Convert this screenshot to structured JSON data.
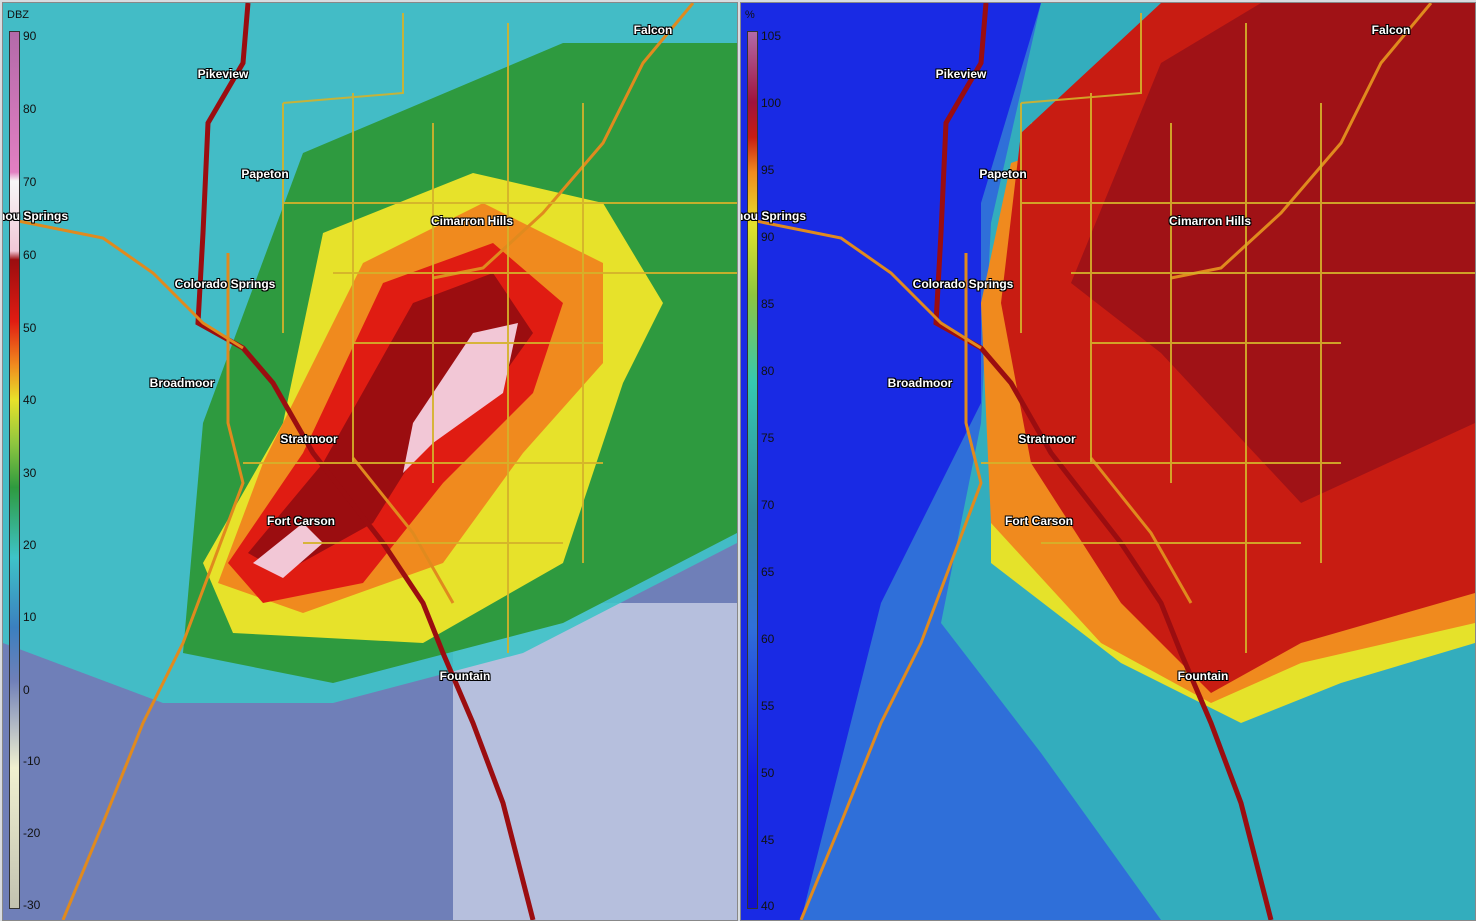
{
  "panels": [
    {
      "id": "reflectivity",
      "unit": "DBZ",
      "ticks": [
        "90",
        "80",
        "70",
        "60",
        "50",
        "40",
        "30",
        "20",
        "10",
        "0",
        "-10",
        "-20",
        "-30"
      ],
      "colors": {
        "bg": "#6f7fb8",
        "c1": "#3ec3c8",
        "c2": "#2e9a3f",
        "c3": "#e7e22a",
        "c4": "#f08a1e",
        "c5": "#e01c12",
        "c6": "#9b0d10",
        "c7": "#f2c7d6",
        "c8": "#b6bfdd"
      }
    },
    {
      "id": "correlation",
      "unit": "%",
      "ticks": [
        "105",
        "100",
        "95",
        "90",
        "85",
        "80",
        "75",
        "70",
        "65",
        "60",
        "55",
        "50",
        "45",
        "40"
      ],
      "colors": {
        "bg": "#2f6fd9",
        "c1": "#1419e6",
        "c2": "#35c8b0",
        "c3": "#e5e22a",
        "c4": "#f08a1e",
        "c5": "#c81c12",
        "c6": "#a01216"
      }
    }
  ],
  "cities": [
    {
      "name": "Falcon"
    },
    {
      "name": "Pikeview"
    },
    {
      "name": "Papeton"
    },
    {
      "name": "Cimarron Hills"
    },
    {
      "name": "nou Springs"
    },
    {
      "name": "Colorado Springs"
    },
    {
      "name": "Broadmoor"
    },
    {
      "name": "Stratmoor"
    },
    {
      "name": "Fort Carson"
    },
    {
      "name": "Fountain"
    }
  ],
  "roads": {
    "interstate": "#9b0d10",
    "highway": "#e08a1e",
    "minor": "#d4b12a"
  }
}
